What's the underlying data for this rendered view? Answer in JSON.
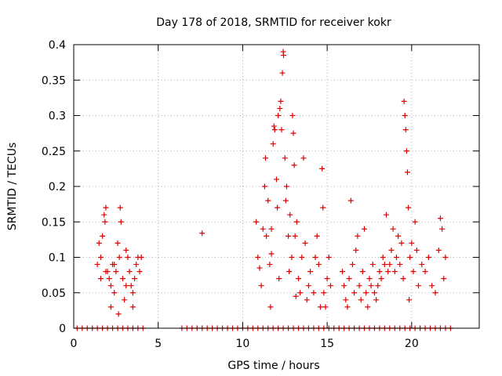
{
  "chart_data": {
    "type": "scatter",
    "title": "Day 178 of 2018, SRMTID for receiver kokr",
    "xlabel": "GPS time / hours",
    "ylabel": "SRMTID / TECUs",
    "xlim": [
      0,
      24
    ],
    "ylim": [
      0,
      0.4
    ],
    "xticks": [
      0,
      5,
      10,
      15,
      20
    ],
    "xtick_labels": [
      "0",
      "5",
      "10",
      "15",
      "20"
    ],
    "yticks": [
      0,
      0.05,
      0.1,
      0.15,
      0.2,
      0.25,
      0.3,
      0.35,
      0.4
    ],
    "ytick_labels": [
      "0",
      "0.05",
      "0.1",
      "0.15",
      "0.2",
      "0.25",
      "0.3",
      "0.35",
      "0.4"
    ],
    "grid": true,
    "marker": "+",
    "series": [
      {
        "name": "SRMTID",
        "color": "#e00000",
        "points": [
          [
            1.4,
            0.09
          ],
          [
            1.5,
            0.12
          ],
          [
            1.6,
            0.1
          ],
          [
            1.7,
            0.13
          ],
          [
            1.8,
            0.16
          ],
          [
            1.85,
            0.15
          ],
          [
            1.9,
            0.17
          ],
          [
            2.0,
            0.08
          ],
          [
            2.1,
            0.07
          ],
          [
            2.2,
            0.06
          ],
          [
            2.3,
            0.09
          ],
          [
            2.4,
            0.05
          ],
          [
            2.5,
            0.08
          ],
          [
            2.6,
            0.12
          ],
          [
            2.7,
            0.1
          ],
          [
            2.75,
            0.17
          ],
          [
            2.8,
            0.15
          ],
          [
            2.9,
            0.07
          ],
          [
            3.0,
            0.04
          ],
          [
            3.1,
            0.06
          ],
          [
            3.2,
            0.1
          ],
          [
            3.3,
            0.08
          ],
          [
            3.4,
            0.06
          ],
          [
            3.5,
            0.03
          ],
          [
            3.6,
            0.07
          ],
          [
            3.7,
            0.09
          ],
          [
            3.8,
            0.1
          ],
          [
            3.9,
            0.08
          ],
          [
            4.0,
            0.1
          ],
          [
            2.2,
            0.03
          ],
          [
            1.6,
            0.07
          ],
          [
            1.9,
            0.08
          ],
          [
            2.4,
            0.09
          ],
          [
            3.1,
            0.11
          ],
          [
            3.5,
            0.05
          ],
          [
            2.65,
            0.02
          ],
          [
            7.6,
            0.134
          ],
          [
            10.8,
            0.15
          ],
          [
            10.9,
            0.1
          ],
          [
            11.0,
            0.085
          ],
          [
            11.1,
            0.06
          ],
          [
            11.2,
            0.14
          ],
          [
            11.3,
            0.2
          ],
          [
            11.35,
            0.24
          ],
          [
            11.4,
            0.13
          ],
          [
            11.5,
            0.18
          ],
          [
            11.6,
            0.09
          ],
          [
            11.65,
            0.03
          ],
          [
            11.7,
            0.14
          ],
          [
            11.8,
            0.26
          ],
          [
            11.85,
            0.285
          ],
          [
            11.9,
            0.28
          ],
          [
            12.0,
            0.21
          ],
          [
            12.05,
            0.17
          ],
          [
            12.1,
            0.3
          ],
          [
            12.2,
            0.31
          ],
          [
            12.25,
            0.32
          ],
          [
            12.3,
            0.28
          ],
          [
            12.35,
            0.36
          ],
          [
            12.4,
            0.39
          ],
          [
            12.42,
            0.385
          ],
          [
            12.5,
            0.24
          ],
          [
            12.55,
            0.18
          ],
          [
            12.6,
            0.2
          ],
          [
            12.7,
            0.13
          ],
          [
            12.75,
            0.08
          ],
          [
            12.8,
            0.16
          ],
          [
            12.9,
            0.1
          ],
          [
            12.95,
            0.3
          ],
          [
            13.0,
            0.275
          ],
          [
            13.05,
            0.23
          ],
          [
            13.1,
            0.13
          ],
          [
            13.2,
            0.15
          ],
          [
            13.3,
            0.07
          ],
          [
            13.4,
            0.05
          ],
          [
            13.5,
            0.1
          ],
          [
            13.6,
            0.24
          ],
          [
            13.7,
            0.12
          ],
          [
            13.8,
            0.04
          ],
          [
            13.9,
            0.06
          ],
          [
            14.0,
            0.08
          ],
          [
            14.2,
            0.05
          ],
          [
            14.3,
            0.1
          ],
          [
            14.4,
            0.13
          ],
          [
            14.5,
            0.09
          ],
          [
            14.6,
            0.03
          ],
          [
            14.7,
            0.225
          ],
          [
            14.75,
            0.17
          ],
          [
            14.8,
            0.05
          ],
          [
            14.9,
            0.03
          ],
          [
            15.0,
            0.07
          ],
          [
            15.1,
            0.1
          ],
          [
            15.2,
            0.06
          ],
          [
            11.7,
            0.105
          ],
          [
            12.15,
            0.07
          ],
          [
            13.15,
            0.045
          ],
          [
            15.9,
            0.08
          ],
          [
            16.0,
            0.06
          ],
          [
            16.1,
            0.04
          ],
          [
            16.2,
            0.03
          ],
          [
            16.3,
            0.07
          ],
          [
            16.4,
            0.18
          ],
          [
            16.5,
            0.09
          ],
          [
            16.6,
            0.05
          ],
          [
            16.7,
            0.11
          ],
          [
            16.8,
            0.13
          ],
          [
            16.9,
            0.06
          ],
          [
            17.0,
            0.04
          ],
          [
            17.1,
            0.08
          ],
          [
            17.2,
            0.14
          ],
          [
            17.3,
            0.05
          ],
          [
            17.4,
            0.03
          ],
          [
            17.5,
            0.07
          ],
          [
            17.6,
            0.06
          ],
          [
            17.7,
            0.09
          ],
          [
            17.8,
            0.05
          ],
          [
            17.9,
            0.04
          ],
          [
            18.0,
            0.06
          ],
          [
            18.1,
            0.08
          ],
          [
            18.2,
            0.07
          ],
          [
            18.3,
            0.1
          ],
          [
            18.4,
            0.09
          ],
          [
            18.5,
            0.16
          ],
          [
            18.6,
            0.08
          ],
          [
            18.7,
            0.09
          ],
          [
            18.8,
            0.11
          ],
          [
            18.9,
            0.14
          ],
          [
            19.0,
            0.08
          ],
          [
            19.1,
            0.1
          ],
          [
            19.2,
            0.13
          ],
          [
            19.3,
            0.09
          ],
          [
            19.4,
            0.12
          ],
          [
            19.5,
            0.07
          ],
          [
            19.55,
            0.32
          ],
          [
            19.6,
            0.3
          ],
          [
            19.65,
            0.28
          ],
          [
            19.7,
            0.25
          ],
          [
            19.75,
            0.22
          ],
          [
            19.8,
            0.17
          ],
          [
            19.85,
            0.04
          ],
          [
            19.9,
            0.1
          ],
          [
            20.0,
            0.12
          ],
          [
            20.1,
            0.08
          ],
          [
            20.2,
            0.15
          ],
          [
            20.3,
            0.11
          ],
          [
            20.4,
            0.06
          ],
          [
            20.6,
            0.09
          ],
          [
            20.8,
            0.08
          ],
          [
            21.0,
            0.1
          ],
          [
            21.2,
            0.06
          ],
          [
            21.4,
            0.05
          ],
          [
            21.6,
            0.11
          ],
          [
            21.8,
            0.14
          ],
          [
            21.9,
            0.07
          ],
          [
            22.0,
            0.1
          ],
          [
            21.7,
            0.155
          ],
          [
            0.2,
            0
          ],
          [
            0.5,
            0
          ],
          [
            0.8,
            0
          ],
          [
            1.1,
            0
          ],
          [
            1.4,
            0
          ],
          [
            1.7,
            0
          ],
          [
            2.0,
            0
          ],
          [
            2.3,
            0
          ],
          [
            2.6,
            0
          ],
          [
            2.9,
            0
          ],
          [
            3.2,
            0
          ],
          [
            3.5,
            0
          ],
          [
            3.8,
            0
          ],
          [
            4.1,
            0
          ],
          [
            6.4,
            0
          ],
          [
            6.7,
            0
          ],
          [
            7.0,
            0
          ],
          [
            7.3,
            0
          ],
          [
            7.6,
            0
          ],
          [
            7.9,
            0
          ],
          [
            8.2,
            0
          ],
          [
            8.5,
            0
          ],
          [
            8.8,
            0
          ],
          [
            9.1,
            0
          ],
          [
            9.4,
            0
          ],
          [
            9.7,
            0
          ],
          [
            10.0,
            0
          ],
          [
            10.3,
            0
          ],
          [
            10.6,
            0
          ],
          [
            10.9,
            0
          ],
          [
            11.2,
            0
          ],
          [
            11.5,
            0
          ],
          [
            11.8,
            0
          ],
          [
            12.1,
            0
          ],
          [
            12.4,
            0
          ],
          [
            12.7,
            0
          ],
          [
            13.0,
            0
          ],
          [
            13.3,
            0
          ],
          [
            13.6,
            0
          ],
          [
            13.9,
            0
          ],
          [
            14.2,
            0
          ],
          [
            14.5,
            0
          ],
          [
            14.8,
            0
          ],
          [
            15.1,
            0
          ],
          [
            15.4,
            0
          ],
          [
            15.7,
            0
          ],
          [
            16.0,
            0
          ],
          [
            16.3,
            0
          ],
          [
            16.6,
            0
          ],
          [
            16.9,
            0
          ],
          [
            17.2,
            0
          ],
          [
            17.5,
            0
          ],
          [
            17.8,
            0
          ],
          [
            18.1,
            0
          ],
          [
            18.4,
            0
          ],
          [
            18.7,
            0
          ],
          [
            19.0,
            0
          ],
          [
            19.3,
            0
          ],
          [
            19.6,
            0
          ],
          [
            19.9,
            0
          ],
          [
            20.2,
            0
          ],
          [
            20.5,
            0
          ],
          [
            20.8,
            0
          ],
          [
            21.1,
            0
          ],
          [
            21.4,
            0
          ],
          [
            21.7,
            0
          ],
          [
            22.0,
            0
          ],
          [
            22.3,
            0
          ]
        ]
      }
    ]
  }
}
